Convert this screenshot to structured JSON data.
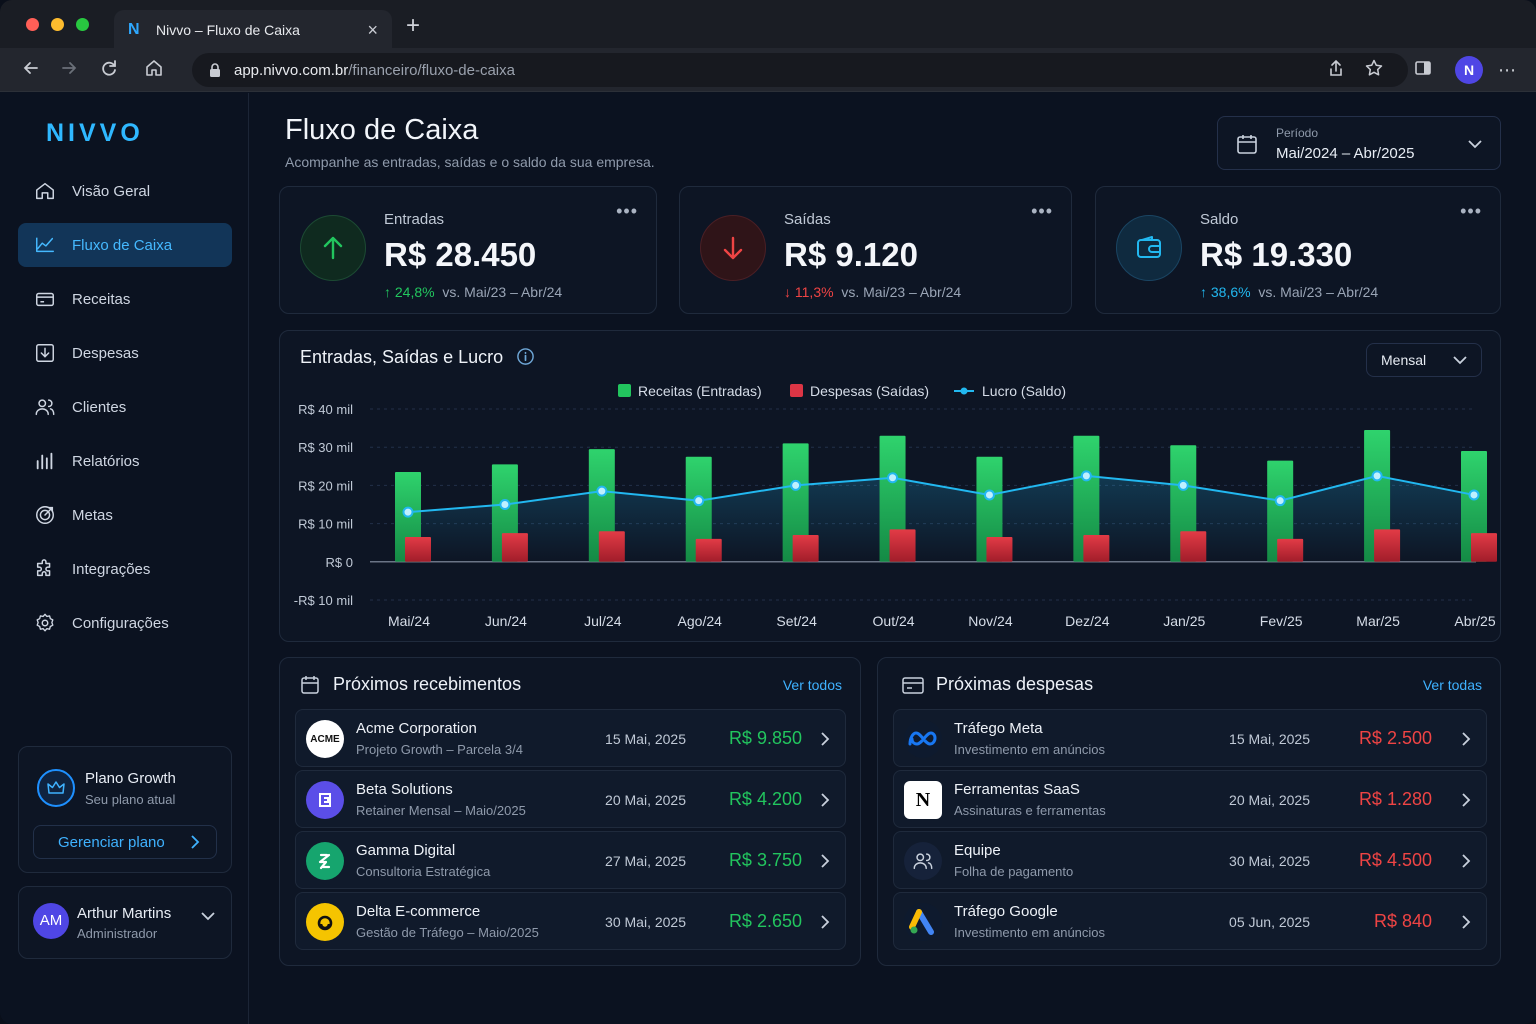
{
  "browser": {
    "tab_title": "Nivvo – Fluxo de Caixa",
    "tab_icon": "N",
    "url_host": "app.nivvo.com.br",
    "url_path": "/financeiro/fluxo-de-caixa",
    "profile_initial": "N"
  },
  "sidebar": {
    "logo": "NIVVO",
    "items": [
      {
        "label": "Visão Geral",
        "icon": "home-icon"
      },
      {
        "label": "Fluxo de Caixa",
        "icon": "trend-icon",
        "active": true
      },
      {
        "label": "Receitas",
        "icon": "card-icon"
      },
      {
        "label": "Despesas",
        "icon": "download-icon"
      },
      {
        "label": "Clientes",
        "icon": "users-icon"
      },
      {
        "label": "Relatórios",
        "icon": "bar-chart-icon"
      },
      {
        "label": "Metas",
        "icon": "target-icon"
      },
      {
        "label": "Integrações",
        "icon": "puzzle-icon"
      },
      {
        "label": "Configurações",
        "icon": "gear-icon"
      }
    ],
    "plan": {
      "name": "Plano Growth",
      "subtitle": "Seu plano atual",
      "button": "Gerenciar plano"
    },
    "user": {
      "initials": "AM",
      "name": "Arthur Martins",
      "role": "Administrador"
    }
  },
  "header": {
    "title": "Fluxo de Caixa",
    "subtitle": "Acompanhe as entradas, saídas e o saldo da sua empresa.",
    "period_label": "Período",
    "period_value": "Mai/2024 – Abr/2025"
  },
  "kpis": [
    {
      "label": "Entradas",
      "value": "R$ 28.450",
      "change": "24,8%",
      "direction": "up",
      "compare": "vs. Mai/23 – Abr/24",
      "color": "#22c55e"
    },
    {
      "label": "Saídas",
      "value": "R$ 9.120",
      "change": "11,3%",
      "direction": "down",
      "compare": "vs. Mai/23 – Abr/24",
      "color": "#ef4444"
    },
    {
      "label": "Saldo",
      "value": "R$ 19.330",
      "change": "38,6%",
      "direction": "up",
      "compare": "vs. Mai/23 – Abr/24",
      "color": "#22b8f0"
    }
  ],
  "chart_section": {
    "title": "Entradas, Saídas e Lucro",
    "granularity": "Mensal"
  },
  "chart_data": {
    "type": "bar",
    "categories": [
      "Mai/24",
      "Jun/24",
      "Jul/24",
      "Ago/24",
      "Set/24",
      "Out/24",
      "Nov/24",
      "Dez/24",
      "Jan/25",
      "Fev/25",
      "Mar/25",
      "Abr/25"
    ],
    "series": [
      {
        "name": "Receitas (Entradas)",
        "type": "bar",
        "color": "#22c55e",
        "values": [
          23.5,
          25.5,
          29.5,
          27.5,
          31,
          33,
          27.5,
          33,
          30.5,
          26.5,
          34.5,
          29
        ]
      },
      {
        "name": "Despesas (Saídas)",
        "type": "bar",
        "color": "#dc3545",
        "values": [
          6.5,
          7.5,
          8,
          6,
          7,
          8.5,
          6.5,
          7,
          8,
          6,
          8.5,
          7.5
        ]
      },
      {
        "name": "Lucro (Saldo)",
        "type": "line",
        "color": "#22b8f0",
        "values": [
          13,
          15,
          18.5,
          16,
          20,
          22,
          17.5,
          22.5,
          20,
          16,
          22.5,
          17.5
        ]
      }
    ],
    "y_ticks": [
      "R$ 40 mil",
      "R$ 30 mil",
      "R$ 20 mil",
      "R$ 10 mil",
      "R$ 0",
      "-R$ 10 mil"
    ],
    "ylim": [
      -10,
      40
    ],
    "legend_position": "top-center",
    "grid": true
  },
  "receivables": {
    "title": "Próximos recebimentos",
    "link": "Ver todos",
    "items": [
      {
        "name": "Acme Corporation",
        "desc": "Projeto Growth – Parcela 3/4",
        "date": "15 Mai, 2025",
        "amount": "R$ 9.850",
        "logo_text": "ACME"
      },
      {
        "name": "Beta Solutions",
        "desc": "Retainer Mensal – Maio/2025",
        "date": "20 Mai, 2025",
        "amount": "R$ 4.200",
        "logo_text": ""
      },
      {
        "name": "Gamma Digital",
        "desc": "Consultoria Estratégica",
        "date": "27 Mai, 2025",
        "amount": "R$ 3.750",
        "logo_text": ""
      },
      {
        "name": "Delta E-commerce",
        "desc": "Gestão de Tráfego – Maio/2025",
        "date": "30 Mai, 2025",
        "amount": "R$ 2.650",
        "logo_text": ""
      }
    ]
  },
  "expenses": {
    "title": "Próximas despesas",
    "link": "Ver todas",
    "items": [
      {
        "name": "Tráfego Meta",
        "desc": "Investimento em anúncios",
        "date": "15 Mai, 2025",
        "amount": "R$ 2.500"
      },
      {
        "name": "Ferramentas SaaS",
        "desc": "Assinaturas e ferramentas",
        "date": "20 Mai, 2025",
        "amount": "R$ 1.280",
        "logo_text": "N"
      },
      {
        "name": "Equipe",
        "desc": "Folha de pagamento",
        "date": "30 Mai, 2025",
        "amount": "R$ 4.500"
      },
      {
        "name": "Tráfego Google",
        "desc": "Investimento em anúncios",
        "date": "05 Jun, 2025",
        "amount": "R$ 840"
      }
    ]
  }
}
